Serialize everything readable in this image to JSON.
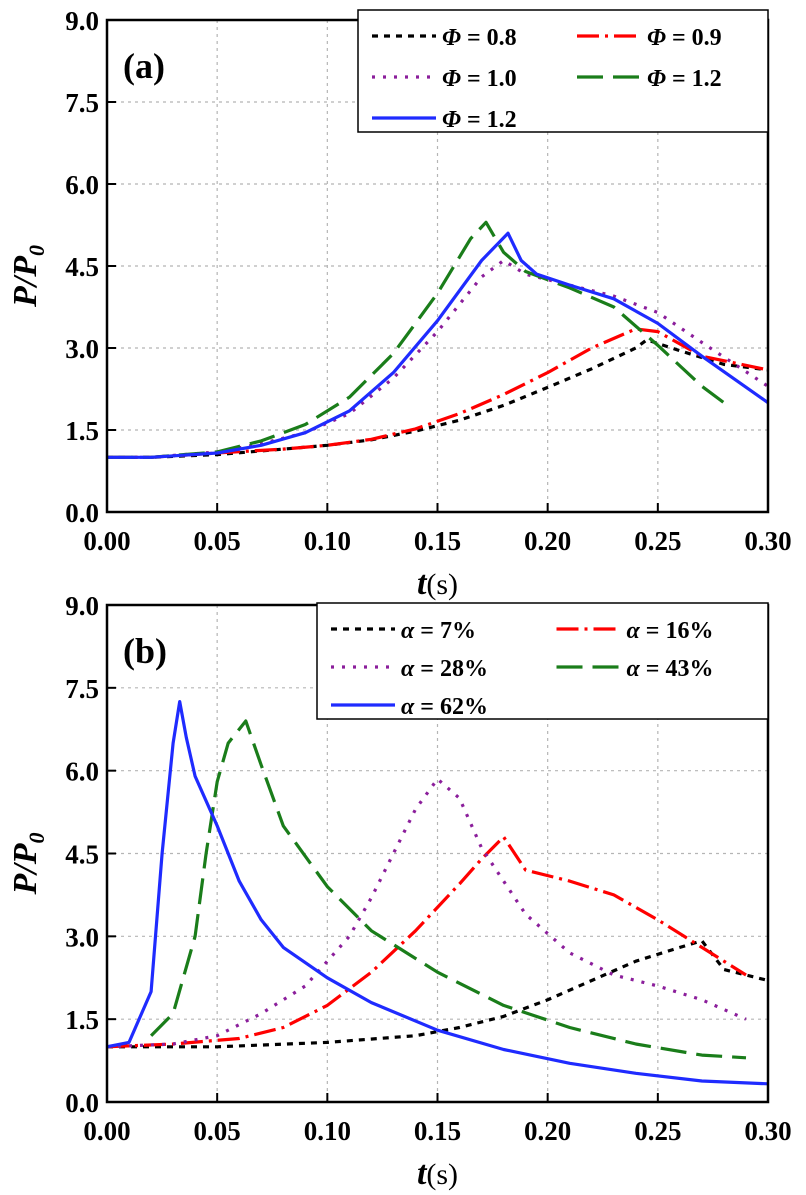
{
  "chart_data": [
    {
      "type": "line",
      "panel_label": "(a)",
      "xlabel": "t",
      "xlabel_unit": "(s)",
      "ylabel": "P/P0",
      "ylabel_main": "P/P",
      "ylabel_sub": "0",
      "xlim": [
        0,
        0.3
      ],
      "ylim": [
        0,
        9.0
      ],
      "xticks": [
        "0.00",
        "0.05",
        "0.10",
        "0.15",
        "0.20",
        "0.25",
        "0.30"
      ],
      "yticks": [
        "0.0",
        "1.5",
        "3.0",
        "4.5",
        "6.0",
        "7.5",
        "9.0"
      ],
      "grid": true,
      "legend_position": "top-right",
      "series": [
        {
          "name": "Φ = 0.8",
          "sym": "Φ",
          "val": " = 0.8",
          "color": "#000000",
          "dash": "6 6",
          "x": [
            0,
            0.02,
            0.05,
            0.08,
            0.1,
            0.12,
            0.14,
            0.16,
            0.18,
            0.2,
            0.22,
            0.24,
            0.245,
            0.26,
            0.28,
            0.3
          ],
          "y": [
            1.0,
            1.0,
            1.05,
            1.15,
            1.22,
            1.32,
            1.48,
            1.68,
            1.95,
            2.28,
            2.62,
            3.0,
            3.15,
            2.95,
            2.7,
            2.6
          ]
        },
        {
          "name": "Φ = 0.9",
          "sym": "Φ",
          "val": " = 0.9",
          "color": "#ff0000",
          "dash": "22 6 3 6",
          "x": [
            0,
            0.02,
            0.05,
            0.08,
            0.1,
            0.12,
            0.14,
            0.16,
            0.18,
            0.2,
            0.22,
            0.24,
            0.25,
            0.27,
            0.3
          ],
          "y": [
            1.0,
            1.0,
            1.08,
            1.15,
            1.22,
            1.33,
            1.52,
            1.8,
            2.15,
            2.55,
            3.0,
            3.35,
            3.3,
            2.85,
            2.6
          ]
        },
        {
          "name": "Φ = 1.0",
          "sym": "Φ",
          "val": " = 1.0",
          "color": "#8b1e9b",
          "dash": "3 8",
          "x": [
            0,
            0.02,
            0.05,
            0.07,
            0.09,
            0.11,
            0.13,
            0.15,
            0.17,
            0.18,
            0.19,
            0.21,
            0.23,
            0.25,
            0.27,
            0.3
          ],
          "y": [
            1.0,
            1.0,
            1.1,
            1.25,
            1.45,
            1.8,
            2.45,
            3.3,
            4.3,
            4.6,
            4.35,
            4.15,
            3.95,
            3.65,
            3.1,
            2.3
          ]
        },
        {
          "name": "Φ = 1.2",
          "sym": "Φ",
          "val": " = 1.2",
          "color": "#1a7d1a",
          "dash": "26 10",
          "x": [
            0,
            0.02,
            0.05,
            0.07,
            0.09,
            0.11,
            0.13,
            0.15,
            0.165,
            0.172,
            0.18,
            0.19,
            0.21,
            0.23,
            0.25,
            0.27,
            0.28
          ],
          "y": [
            1.0,
            1.0,
            1.1,
            1.3,
            1.6,
            2.1,
            2.9,
            4.0,
            5.0,
            5.3,
            4.75,
            4.4,
            4.1,
            3.75,
            3.05,
            2.3,
            2.0
          ]
        },
        {
          "name": "Φ = 1.2",
          "sym": "Φ",
          "val": " = 1.2",
          "color": "#1f2bff",
          "dash": "",
          "x": [
            0,
            0.02,
            0.05,
            0.07,
            0.09,
            0.11,
            0.13,
            0.15,
            0.17,
            0.182,
            0.188,
            0.195,
            0.21,
            0.23,
            0.25,
            0.27,
            0.3
          ],
          "y": [
            1.0,
            1.0,
            1.08,
            1.22,
            1.45,
            1.85,
            2.55,
            3.5,
            4.6,
            5.1,
            4.6,
            4.35,
            4.15,
            3.9,
            3.45,
            2.85,
            2.0
          ]
        }
      ]
    },
    {
      "type": "line",
      "panel_label": "(b)",
      "xlabel": "t",
      "xlabel_unit": "(s)",
      "ylabel": "P/P0",
      "ylabel_main": "P/P",
      "ylabel_sub": "0",
      "xlim": [
        0,
        0.3
      ],
      "ylim": [
        0,
        9.0
      ],
      "xticks": [
        "0.00",
        "0.05",
        "0.10",
        "0.15",
        "0.20",
        "0.25",
        "0.30"
      ],
      "yticks": [
        "0.0",
        "1.5",
        "3.0",
        "4.5",
        "6.0",
        "7.5",
        "9.0"
      ],
      "grid": true,
      "legend_position": "top-right",
      "series": [
        {
          "name": "α =   7%",
          "sym": "α",
          "val": " =   7%",
          "color": "#000000",
          "dash": "6 6",
          "x": [
            0,
            0.05,
            0.1,
            0.14,
            0.16,
            0.18,
            0.2,
            0.22,
            0.24,
            0.26,
            0.27,
            0.28,
            0.3
          ],
          "y": [
            1.0,
            1.0,
            1.08,
            1.2,
            1.35,
            1.55,
            1.85,
            2.2,
            2.55,
            2.8,
            2.92,
            2.4,
            2.2
          ]
        },
        {
          "name": "α = 16%",
          "sym": "α",
          "val": " = 16%",
          "color": "#ff0000",
          "dash": "22 6 3 6",
          "x": [
            0,
            0.03,
            0.06,
            0.08,
            0.1,
            0.12,
            0.14,
            0.16,
            0.17,
            0.18,
            0.19,
            0.21,
            0.23,
            0.25,
            0.27,
            0.29
          ],
          "y": [
            1.0,
            1.05,
            1.15,
            1.35,
            1.75,
            2.35,
            3.1,
            3.95,
            4.4,
            4.8,
            4.2,
            4.0,
            3.75,
            3.3,
            2.8,
            2.3
          ]
        },
        {
          "name": "α = 28%",
          "sym": "α",
          "val": " = 28%",
          "color": "#8b1e9b",
          "dash": "3 8",
          "x": [
            0,
            0.03,
            0.05,
            0.07,
            0.09,
            0.11,
            0.12,
            0.13,
            0.14,
            0.15,
            0.16,
            0.17,
            0.19,
            0.21,
            0.23,
            0.25,
            0.27,
            0.29
          ],
          "y": [
            1.0,
            1.05,
            1.2,
            1.6,
            2.1,
            3.0,
            3.7,
            4.5,
            5.3,
            5.85,
            5.5,
            4.6,
            3.4,
            2.7,
            2.3,
            2.1,
            1.85,
            1.5
          ]
        },
        {
          "name": "α = 43%",
          "sym": "α",
          "val": " = 43%",
          "color": "#1a7d1a",
          "dash": "26 10",
          "x": [
            0.02,
            0.03,
            0.04,
            0.045,
            0.05,
            0.055,
            0.063,
            0.07,
            0.08,
            0.1,
            0.12,
            0.15,
            0.18,
            0.21,
            0.24,
            0.27,
            0.29
          ],
          "y": [
            1.2,
            1.6,
            3.0,
            4.5,
            5.8,
            6.5,
            6.9,
            6.1,
            5.0,
            3.9,
            3.1,
            2.35,
            1.75,
            1.35,
            1.05,
            0.85,
            0.8
          ]
        },
        {
          "name": "α = 62%",
          "sym": "α",
          "val": " = 62%",
          "color": "#1f2bff",
          "dash": "",
          "x": [
            0,
            0.01,
            0.02,
            0.025,
            0.03,
            0.033,
            0.036,
            0.04,
            0.05,
            0.06,
            0.07,
            0.08,
            0.1,
            0.12,
            0.15,
            0.18,
            0.21,
            0.24,
            0.27,
            0.3
          ],
          "y": [
            1.0,
            1.08,
            2.0,
            4.5,
            6.5,
            7.25,
            6.6,
            5.9,
            5.0,
            4.0,
            3.3,
            2.8,
            2.25,
            1.8,
            1.3,
            0.95,
            0.7,
            0.52,
            0.38,
            0.33
          ]
        }
      ]
    }
  ]
}
